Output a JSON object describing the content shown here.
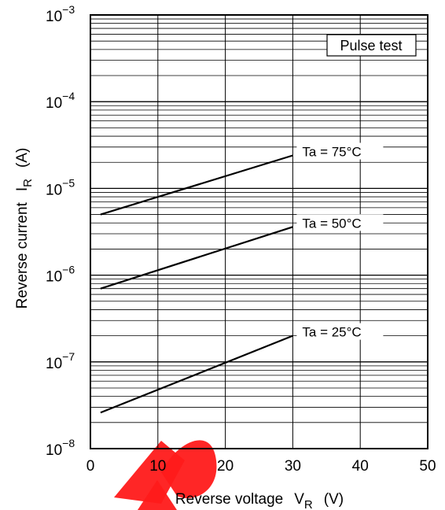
{
  "chart_data": {
    "type": "line",
    "title": "",
    "xlabel": "Reverse voltage",
    "xlabel_symbol": "V",
    "xlabel_subscript": "R",
    "xlabel_unit": "(V)",
    "ylabel": "Reverse current",
    "ylabel_symbol": "I",
    "ylabel_subscript": "R",
    "ylabel_unit": "(A)",
    "xlim": [
      0,
      50
    ],
    "ylim": [
      1e-08,
      0.001
    ],
    "yscale": "log",
    "grid": true,
    "x_ticks": [
      "0",
      "10",
      "20",
      "30",
      "40",
      "50"
    ],
    "y_ticks": [
      {
        "base": "10",
        "exp": "−8"
      },
      {
        "base": "10",
        "exp": "−7"
      },
      {
        "base": "10",
        "exp": "−6"
      },
      {
        "base": "10",
        "exp": "−5"
      },
      {
        "base": "10",
        "exp": "−4"
      },
      {
        "base": "10",
        "exp": "−3"
      }
    ],
    "annotation": "Pulse test",
    "series": [
      {
        "name": "Ta = 75°C",
        "x": [
          1.5,
          30
        ],
        "y": [
          5e-06,
          2.4e-05
        ]
      },
      {
        "name": "Ta = 50°C",
        "x": [
          1.5,
          30
        ],
        "y": [
          7e-07,
          3.6e-06
        ]
      },
      {
        "name": "Ta = 25°C",
        "x": [
          1.5,
          30
        ],
        "y": [
          2.6e-08,
          2e-07
        ]
      }
    ],
    "line_color": "#000000",
    "watermark_color": "#ff0000"
  }
}
